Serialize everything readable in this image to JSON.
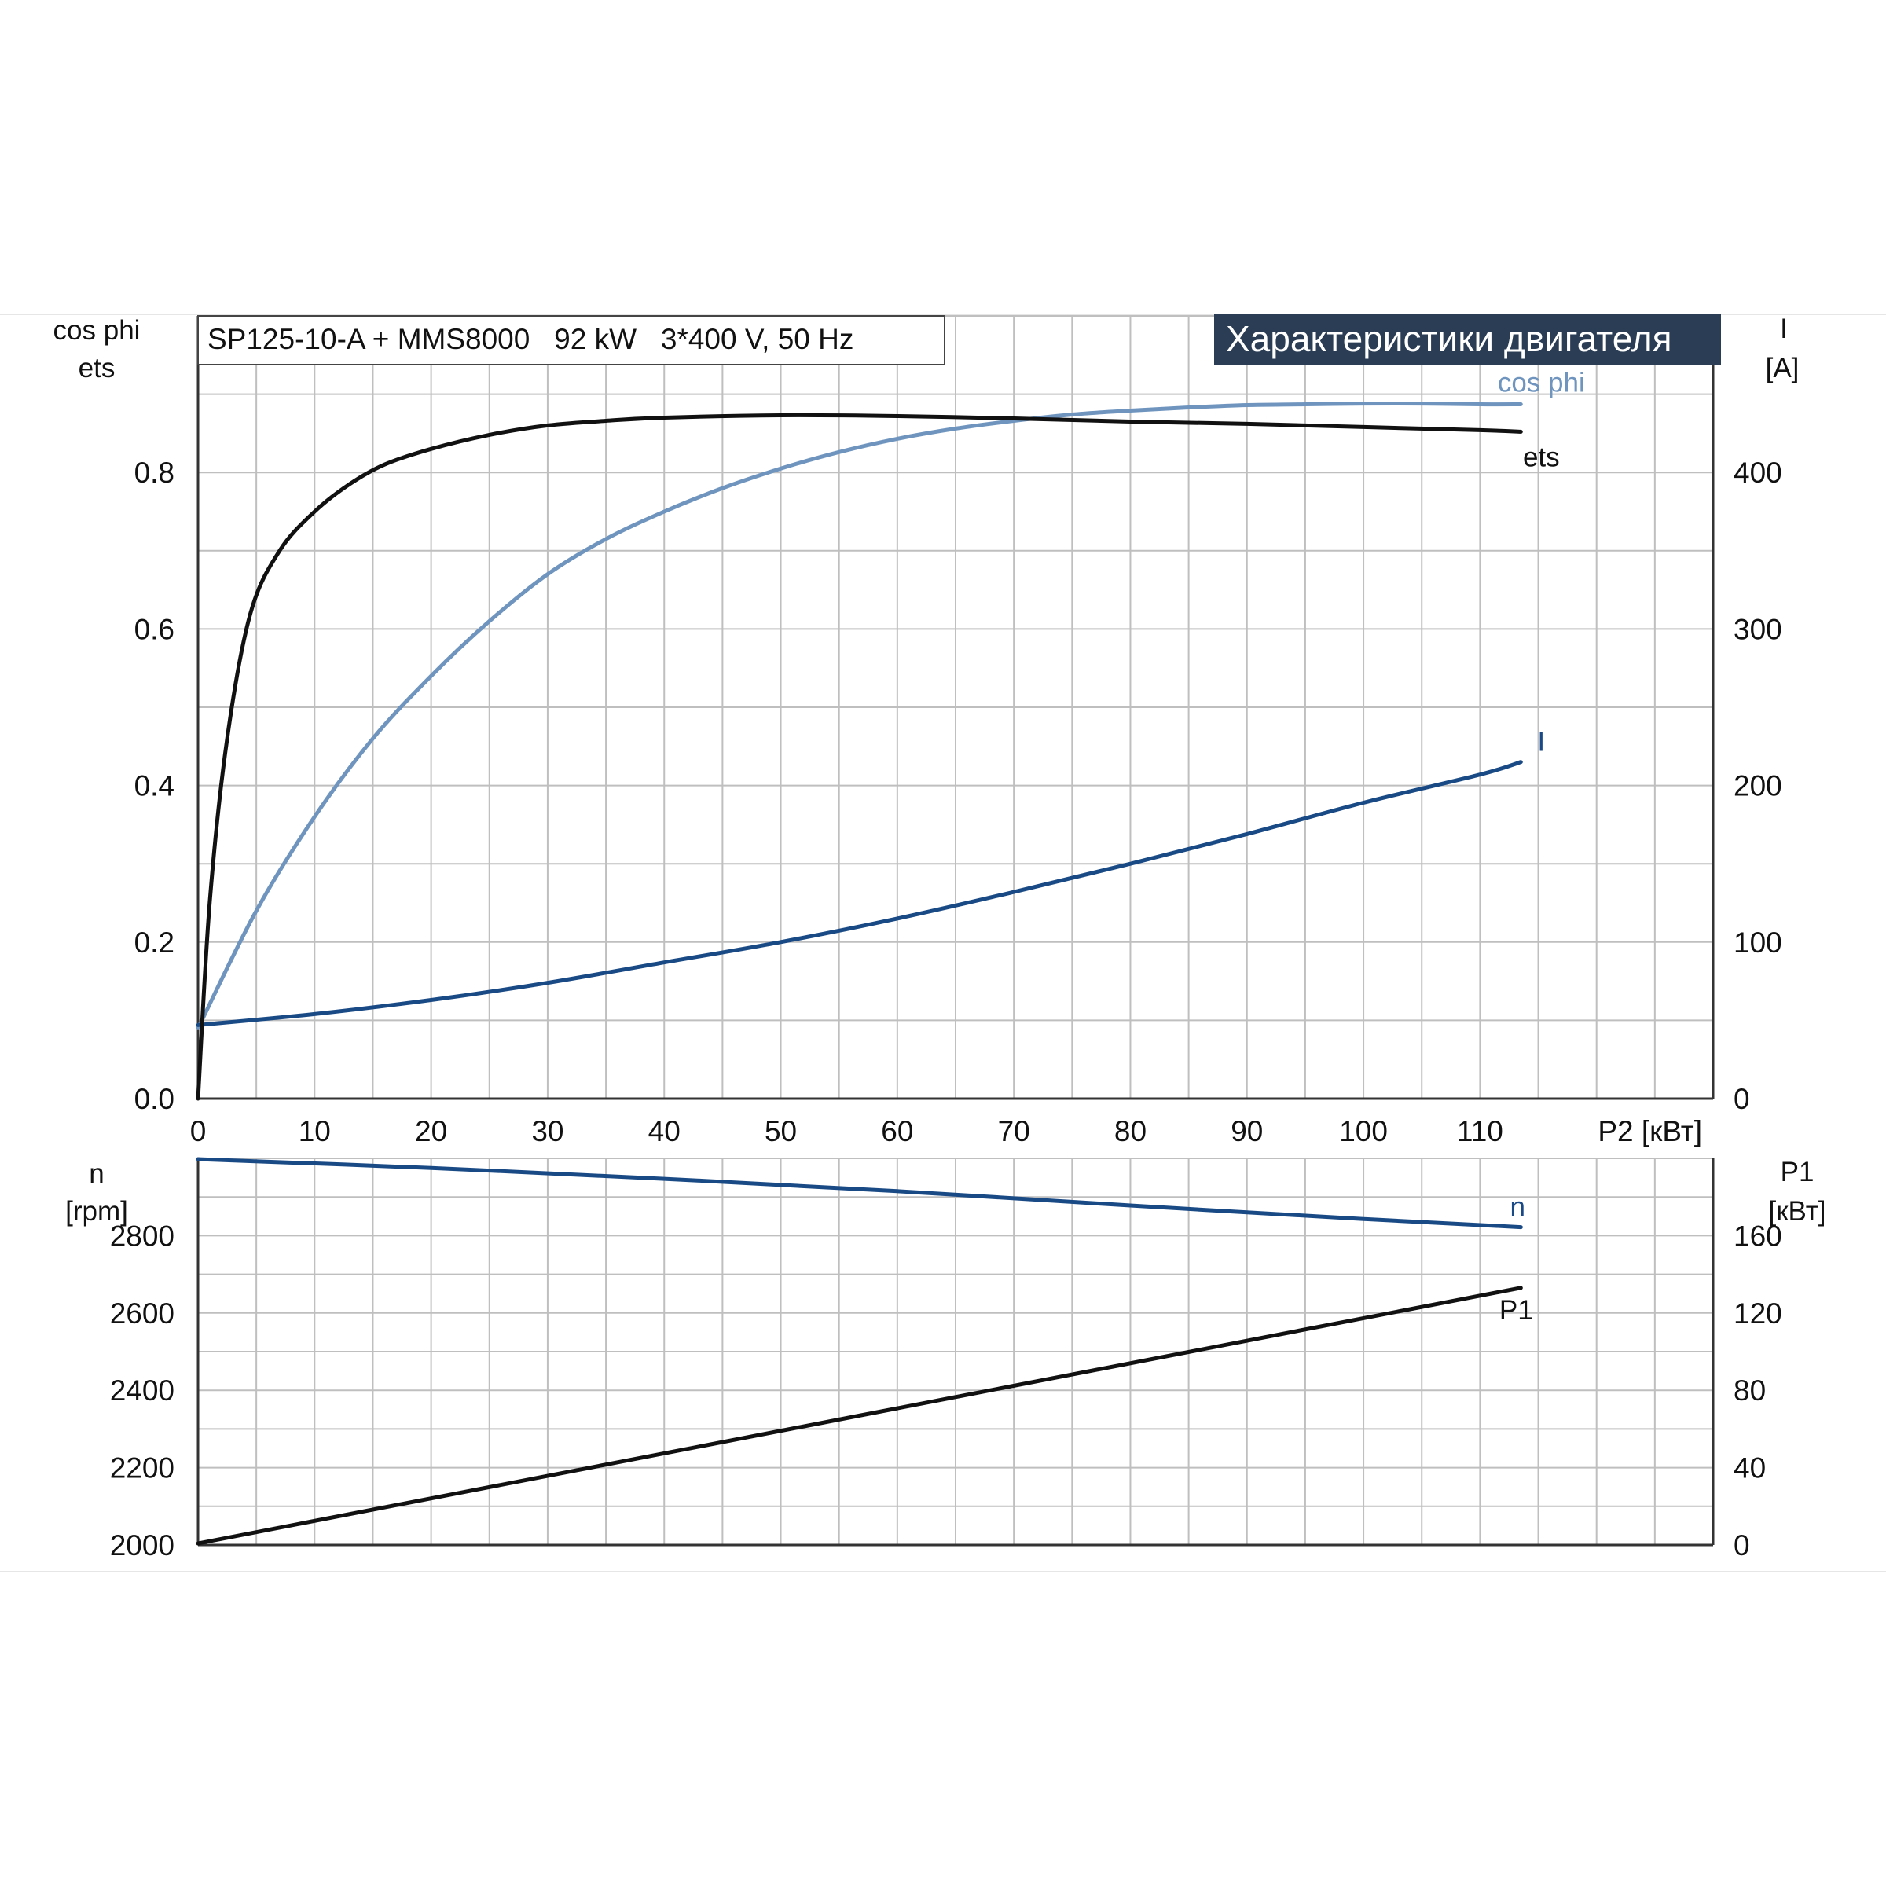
{
  "title": "SP125-10-A + MMS8000   92 kW   3*400 V, 50 Hz",
  "banner": "Характеристики двигателя",
  "colors": {
    "ets": "#111111",
    "cos_phi": "#6f95bf",
    "I": "#1a4a85",
    "n": "#1a4a85",
    "P1": "#111111",
    "banner_bg": "#2a3d55"
  },
  "chart_data": [
    {
      "type": "line",
      "panel": "top",
      "xlabel": "P2 [кВт]",
      "xlim": [
        0,
        130
      ],
      "xticks": [
        0,
        10,
        20,
        30,
        40,
        50,
        60,
        70,
        80,
        90,
        100,
        110
      ],
      "ylabel_left": [
        "cos phi",
        "ets"
      ],
      "ylim_left": [
        0,
        1.0
      ],
      "yticks_left": [
        0.0,
        0.2,
        0.4,
        0.6,
        0.8
      ],
      "ytick_labels_left": [
        "0.0",
        "0.2",
        "0.4",
        "0.6",
        "0.8"
      ],
      "ylabel_right": [
        "I",
        "[A]"
      ],
      "ylim_right": [
        0,
        500
      ],
      "yticks_right": [
        0,
        100,
        200,
        300,
        400
      ],
      "ytick_labels_right": [
        "0",
        "100",
        "200",
        "300",
        "400"
      ],
      "grid": true,
      "series": [
        {
          "name": "ets",
          "axis": "left",
          "x": [
            0,
            1,
            2.5,
            4.5,
            7,
            10,
            13,
            16,
            20,
            25,
            30,
            35,
            40,
            50,
            60,
            70,
            80,
            90,
            100,
            110,
            113.5
          ],
          "y": [
            0.0,
            0.25,
            0.46,
            0.62,
            0.7,
            0.75,
            0.785,
            0.81,
            0.83,
            0.848,
            0.86,
            0.866,
            0.87,
            0.873,
            0.872,
            0.869,
            0.865,
            0.862,
            0.858,
            0.854,
            0.852
          ]
        },
        {
          "name": "cos phi",
          "axis": "left",
          "x": [
            0,
            5,
            10,
            15,
            20,
            25,
            30,
            35,
            40,
            45,
            50,
            55,
            60,
            65,
            70,
            75,
            80,
            85,
            90,
            95,
            100,
            105,
            110,
            113.5
          ],
          "y": [
            0.09,
            0.24,
            0.36,
            0.46,
            0.54,
            0.61,
            0.67,
            0.715,
            0.75,
            0.78,
            0.805,
            0.826,
            0.843,
            0.856,
            0.866,
            0.874,
            0.879,
            0.883,
            0.886,
            0.887,
            0.888,
            0.888,
            0.887,
            0.887
          ]
        },
        {
          "name": "I",
          "axis": "right",
          "x": [
            0,
            10,
            20,
            30,
            40,
            50,
            60,
            70,
            80,
            90,
            100,
            110,
            113.5
          ],
          "y": [
            47,
            54,
            63,
            74,
            87,
            100,
            115,
            132,
            150,
            169,
            189,
            207,
            215
          ]
        }
      ]
    },
    {
      "type": "line",
      "panel": "bottom",
      "xlim": [
        0,
        130
      ],
      "ylabel_left": [
        "n",
        "[rpm]"
      ],
      "ylim_left": [
        2000,
        3000
      ],
      "yticks_left": [
        2000,
        2200,
        2400,
        2600,
        2800
      ],
      "ytick_labels_left": [
        "2000",
        "2200",
        "2400",
        "2600",
        "2800"
      ],
      "ylabel_right": [
        "P1",
        "[кВт]"
      ],
      "ylim_right": [
        0,
        200
      ],
      "yticks_right": [
        0,
        40,
        80,
        120,
        160
      ],
      "ytick_labels_right": [
        "0",
        "40",
        "80",
        "120",
        "160"
      ],
      "grid": true,
      "series": [
        {
          "name": "n",
          "axis": "left",
          "x": [
            0,
            20,
            40,
            60,
            80,
            100,
            113.5
          ],
          "y": [
            2998,
            2975,
            2947,
            2915,
            2878,
            2843,
            2822
          ]
        },
        {
          "name": "P1",
          "axis": "right",
          "x": [
            0,
            113.5
          ],
          "y": [
            0.8,
            133
          ]
        }
      ]
    }
  ]
}
